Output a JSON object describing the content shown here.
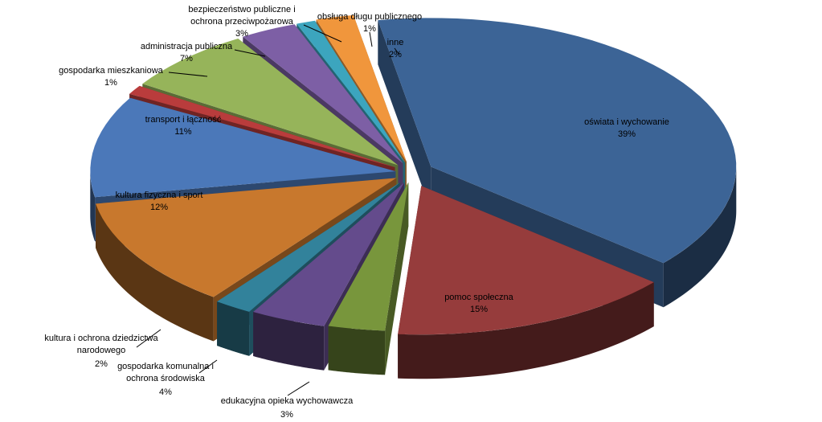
{
  "chart_data": {
    "type": "pie",
    "style": "3d-exploded",
    "unit": "%",
    "slices": [
      {
        "label": "oświata i wychowanie",
        "value": 39,
        "value_label": "39%",
        "color": "#3C6496"
      },
      {
        "label": "pomoc społeczna",
        "value": 15,
        "value_label": "15%",
        "color": "#963C3C"
      },
      {
        "label": "edukacyjna opieka wychowawcza",
        "value": 3,
        "value_label": "3%",
        "color": "#78963C"
      },
      {
        "label": "gospodarka komunalna i ochrona środowiska",
        "value": 4,
        "value_label": "4%",
        "color": "#644B8C"
      },
      {
        "label": "kultura i ochrona dziedzictwa narodowego",
        "value": 2,
        "value_label": "2%",
        "color": "#32829B"
      },
      {
        "label": "kultura fizyczna i sport",
        "value": 12,
        "value_label": "12%",
        "color": "#C8782D"
      },
      {
        "label": "transport i łączność",
        "value": 11,
        "value_label": "11%",
        "color": "#4B78B9"
      },
      {
        "label": "gospodarka mieszkaniowa",
        "value": 1,
        "value_label": "1%",
        "color": "#B93C3C"
      },
      {
        "label": "administracja publiczna",
        "value": 7,
        "value_label": "7%",
        "color": "#96B45A"
      },
      {
        "label": "bezpieczeństwo publiczne i ochrona przeciwpożarowa",
        "value": 3,
        "value_label": "3%",
        "color": "#7D5FA5"
      },
      {
        "label": "obsługa długu publicznego",
        "value": 1,
        "value_label": "1%",
        "color": "#3CA5BE"
      },
      {
        "label": "inne",
        "value": 2,
        "value_label": "2%",
        "color": "#F0963C"
      }
    ]
  }
}
